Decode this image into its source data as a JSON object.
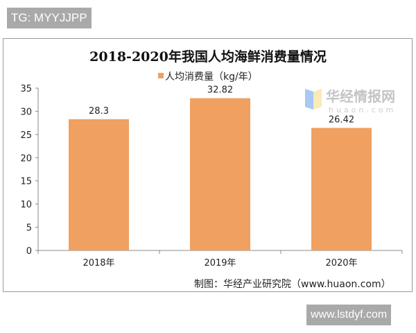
{
  "watermarks": {
    "top_left": "TG: MYYJJPP",
    "bottom_right": "www.lstdyf.com",
    "logo_text": "华经情报网",
    "logo_sub": "huaon.com"
  },
  "source": "制图：华经产业研究院（www.huaon.com）",
  "chart_data": {
    "type": "bar",
    "title": "2018-2020年我国人均海鲜消费量情况",
    "categories": [
      "2018年",
      "2019年",
      "2020年"
    ],
    "series": [
      {
        "name": "人均消费量（kg/年）",
        "values": [
          28.3,
          32.82,
          26.42
        ],
        "color": "#f0a060"
      }
    ],
    "data_labels": [
      "28.3",
      "32.82",
      "26.42"
    ],
    "ylim": [
      0,
      35
    ],
    "yticks": [
      "0",
      "5",
      "10",
      "15",
      "20",
      "25",
      "30",
      "35"
    ],
    "legend": "top",
    "grid": false
  }
}
